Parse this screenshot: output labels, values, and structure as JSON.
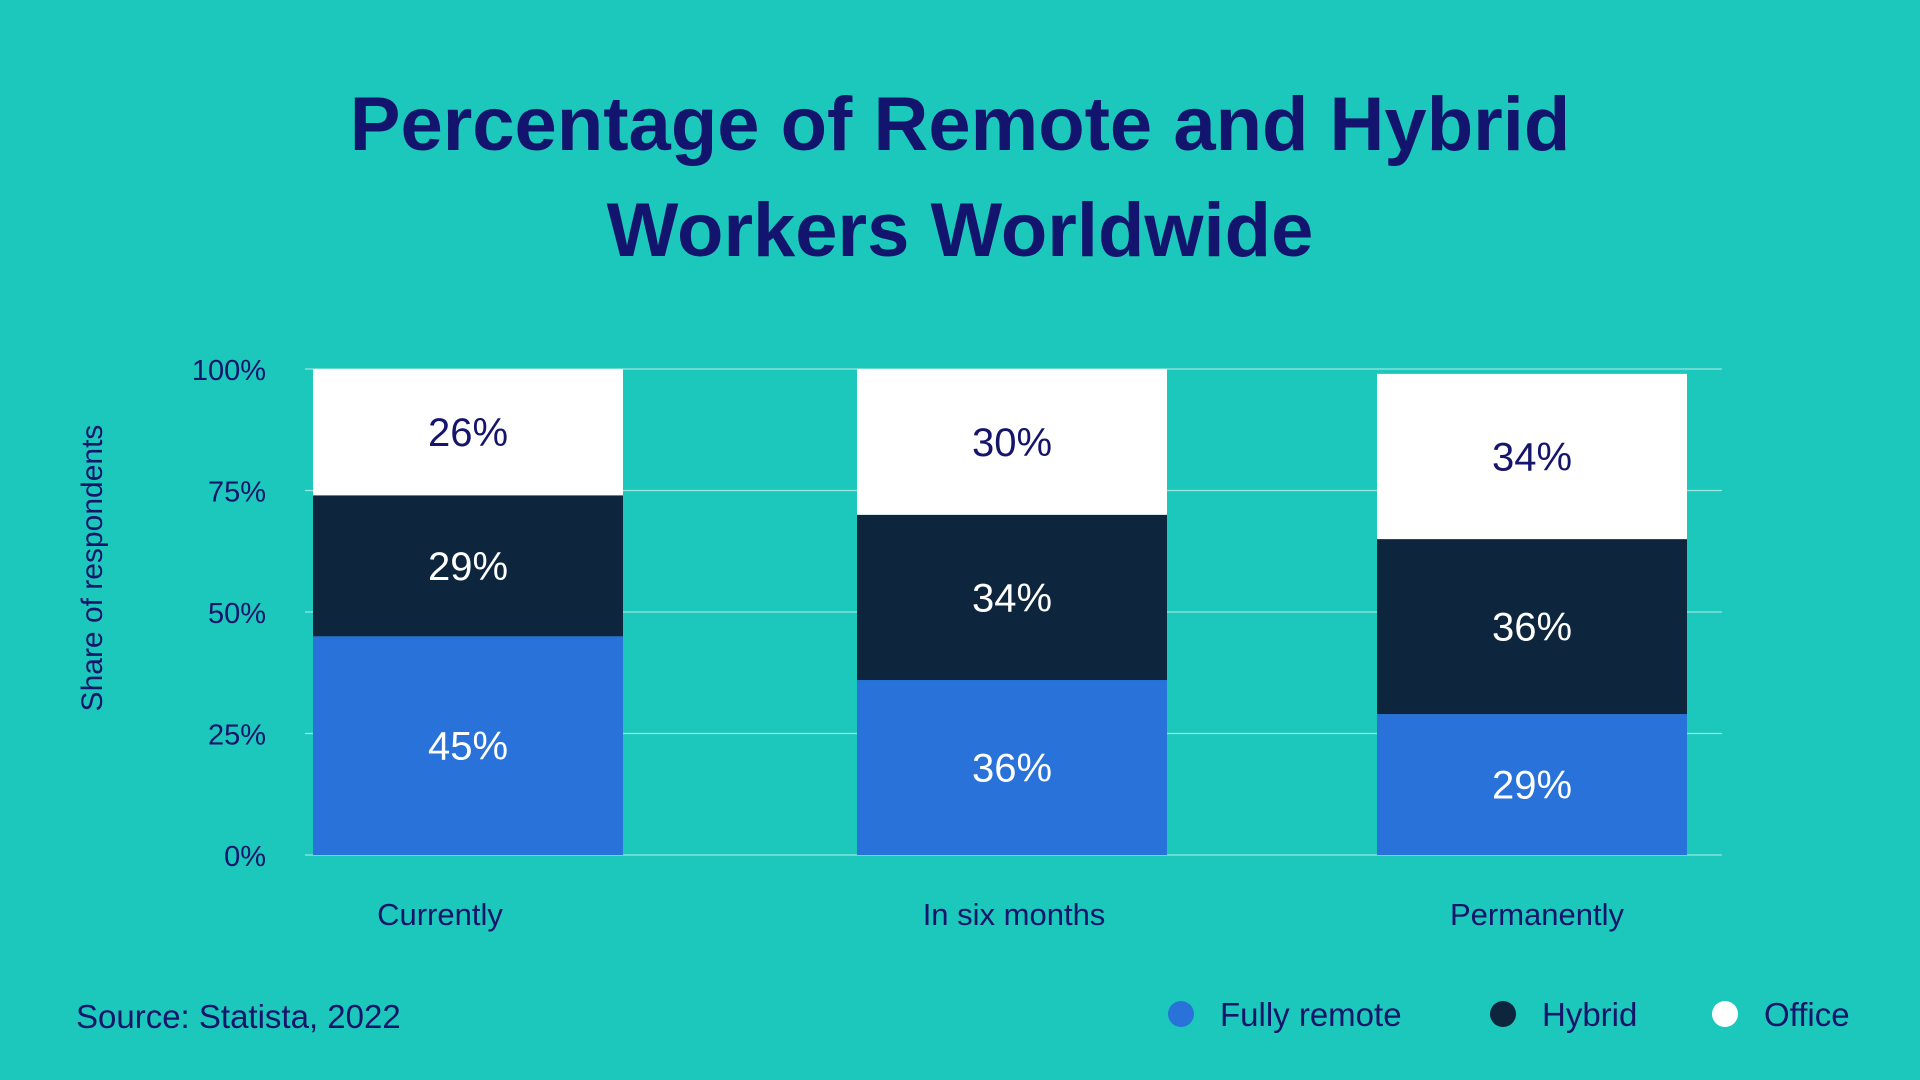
{
  "colors": {
    "background": "#1cc8bb",
    "title": "#13146e",
    "fully_remote": "#2872d9",
    "hybrid": "#0d263d",
    "office": "#ffffff",
    "text_dark": "#14156b"
  },
  "chart_data": {
    "type": "bar",
    "stacked": true,
    "title": "Percentage of Remote and Hybrid Workers Worldwide",
    "title_lines": [
      "Percentage of Remote and Hybrid",
      "Workers Worldwide"
    ],
    "xlabel": "",
    "ylabel": "Share of respondents",
    "ylim": [
      0,
      100
    ],
    "yticks": [
      "0%",
      "25%",
      "50%",
      "75%",
      "100%"
    ],
    "grid": true,
    "legend_position": "bottom-right",
    "categories": [
      "Currently",
      "In six months",
      "Permanently"
    ],
    "series": [
      {
        "name": "Fully remote",
        "values": [
          45,
          36,
          29
        ],
        "labels": [
          "45%",
          "36%",
          "29%"
        ],
        "color": "#2872d9"
      },
      {
        "name": "Hybrid",
        "values": [
          29,
          34,
          36
        ],
        "labels": [
          "29%",
          "34%",
          "36%"
        ],
        "color": "#0d263d"
      },
      {
        "name": "Office",
        "values": [
          26,
          30,
          34
        ],
        "labels": [
          "26%",
          "30%",
          "34%"
        ],
        "color": "#ffffff"
      }
    ],
    "source": "Source: Statista, 2022"
  }
}
